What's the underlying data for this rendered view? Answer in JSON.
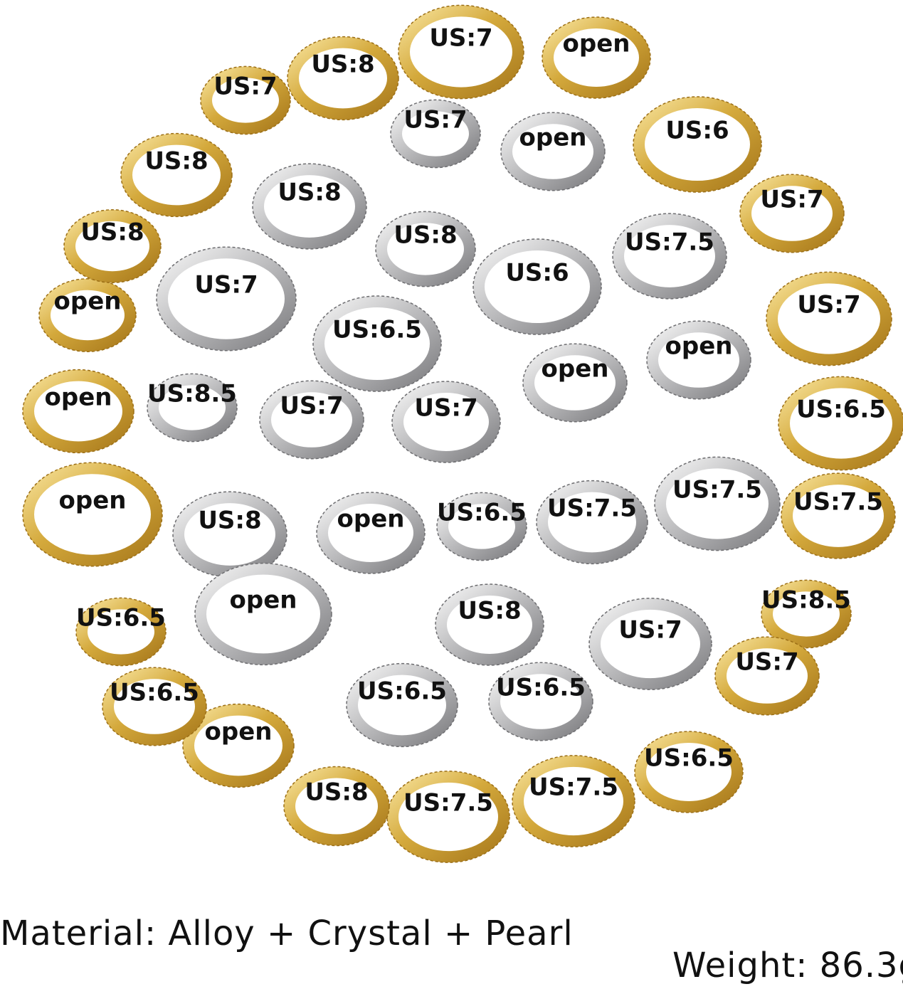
{
  "ring_labels": [
    "US:7",
    "US:8",
    "US:7",
    "open",
    "US:6",
    "US:7",
    "US:7",
    "US:6.5",
    "US:7.5",
    "US:8.5",
    "US:7",
    "US:6.5",
    "US:7.5",
    "US:7.5",
    "US:8",
    "open",
    "US:6.5",
    "US:6.5",
    "open",
    "open",
    "open",
    "US:8",
    "US:8",
    "US:7",
    "open",
    "US:8",
    "US:8",
    "US:6",
    "US:7.5",
    "US:7",
    "US:6.5",
    "open",
    "open",
    "US:8.5",
    "US:7",
    "US:7",
    "US:6.5",
    "US:7.5",
    "US:7.5",
    "US:8",
    "open",
    "open",
    "US:8",
    "US:7",
    "US:6.5",
    "US:6.5"
  ],
  "material": "Material: Alloy + Crystal + Pearl",
  "weight": "Weight: 86.3g"
}
